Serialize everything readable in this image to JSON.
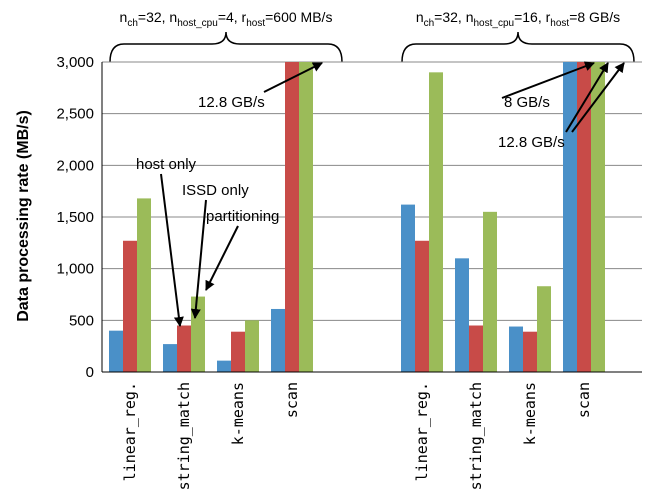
{
  "chart_data": {
    "type": "bar",
    "ylabel": "Data processing rate (MB/s)",
    "ylim": [
      0,
      3000
    ],
    "yticks": [
      "0",
      "500",
      "1,000",
      "1,500",
      "2,000",
      "2,500",
      "3,000"
    ],
    "ytick_values": [
      0,
      500,
      1000,
      1500,
      2000,
      2500,
      3000
    ],
    "colors": [
      "#4a90c8",
      "#c84b48",
      "#9bbb59"
    ],
    "groups": [
      {
        "config": {
          "n1": "n",
          "s1": "ch",
          "t1": "=32, n",
          "s2": "host_cpu",
          "t2": "=4, r",
          "s3": "host",
          "t3": "=600 MB/s"
        },
        "categories": [
          "linear_reg.",
          "string_match",
          "k-means",
          "scan"
        ],
        "series": [
          {
            "values": [
              400,
              270,
              110,
              610
            ]
          },
          {
            "values": [
              1270,
              450,
              390,
              3000
            ]
          },
          {
            "values": [
              1680,
              730,
              500,
              3000
            ]
          }
        ]
      },
      {
        "config": {
          "n1": "n",
          "s1": "ch",
          "t1": "=32, n",
          "s2": "host_cpu",
          "t2": "=16, r",
          "s3": "host",
          "t3": "=8 GB/s"
        },
        "categories": [
          "linear_reg.",
          "string_match",
          "k-means",
          "scan"
        ],
        "series": [
          {
            "values": [
              1620,
              1100,
              440,
              3000
            ]
          },
          {
            "values": [
              1270,
              450,
              390,
              3000
            ]
          },
          {
            "values": [
              2900,
              1550,
              830,
              3000
            ]
          }
        ]
      }
    ],
    "annotations": {
      "host_only": "host only",
      "issd_only": "ISSD only",
      "partitioning": "partitioning",
      "g1_scan": "12.8 GB/s",
      "g2_8gb": "8 GB/s",
      "g2_128gb": "12.8 GB/s"
    }
  }
}
